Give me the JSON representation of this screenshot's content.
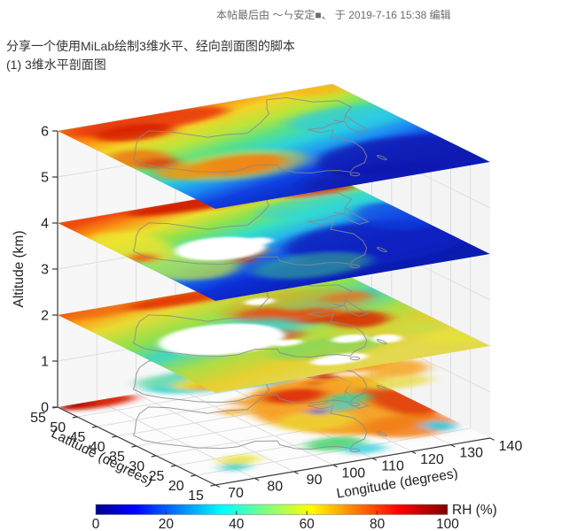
{
  "post": {
    "edit_note": "本帖最后由 ～ㄣ安定■、 于 2019-7-16 15:38 编辑",
    "body_line1": "分享一个使用MiLab绘制3维水平、经向剖面图的脚本",
    "body_line2": "(1) 3维水平剖面图"
  },
  "chart_data": {
    "type": "heatmap",
    "subtype": "3d-horizontal-slices",
    "variable": "relative humidity",
    "xlabel": "Longitude (degrees)",
    "ylabel": "Latitude (degrees)",
    "zlabel": "Altitude (km)",
    "x_ticks": [
      70,
      80,
      90,
      100,
      110,
      120,
      130,
      140
    ],
    "y_ticks": [
      55,
      50,
      45,
      40,
      35,
      30,
      25,
      20,
      15
    ],
    "z_ticks": [
      0,
      1,
      2,
      3,
      4,
      5,
      6
    ],
    "xlim": [
      70,
      140
    ],
    "ylim": [
      15,
      55
    ],
    "zlim": [
      0,
      6
    ],
    "slice_altitudes_km": [
      0,
      1,
      2,
      4,
      6
    ],
    "colorbar": {
      "label": "RH (%)",
      "ticks": [
        0,
        20,
        40,
        60,
        80,
        100
      ],
      "min": 0,
      "max": 100,
      "colormap": "jet",
      "stops": [
        [
          0,
          "#00008f"
        ],
        [
          0.11,
          "#0000ff"
        ],
        [
          0.36,
          "#00ffff"
        ],
        [
          0.61,
          "#ffff00"
        ],
        [
          0.86,
          "#ff0000"
        ],
        [
          1,
          "#800000"
        ]
      ]
    },
    "slices": [
      {
        "altitude_km": 0,
        "coverage": "partial",
        "blobs": [
          [
            0.13,
            0.02,
            0.14,
            0.055,
            "#d41b04",
            0.95
          ],
          [
            0.06,
            0.01,
            0.06,
            0.03,
            "#a50d00",
            0.9
          ],
          [
            0.78,
            0.45,
            0.3,
            0.33,
            "#f59c1a",
            0.92
          ],
          [
            0.7,
            0.28,
            0.11,
            0.08,
            "#dd2506",
            0.85
          ],
          [
            0.96,
            0.5,
            0.09,
            0.2,
            "#e03007",
            0.8
          ],
          [
            0.62,
            0.55,
            0.13,
            0.1,
            "#ecd431",
            0.85
          ],
          [
            0.85,
            0.75,
            0.16,
            0.12,
            "#f07d12",
            0.85
          ],
          [
            0.55,
            0.8,
            0.1,
            0.07,
            "#52d473",
            0.9
          ],
          [
            0.6,
            0.9,
            0.07,
            0.05,
            "#38cfe0",
            0.8
          ],
          [
            0.93,
            0.8,
            0.05,
            0.06,
            "#35cde4",
            0.9
          ],
          [
            0.68,
            0.47,
            0.03,
            0.03,
            "#1545e0",
            0.85
          ],
          [
            0.2,
            0.8,
            0.07,
            0.05,
            "#e8e23a",
            0.85
          ],
          [
            0.15,
            0.86,
            0.05,
            0.04,
            "#3fd0c8",
            0.85
          ],
          [
            0.45,
            0.33,
            0.045,
            0.035,
            "#f2a01c",
            0.8
          ],
          [
            0.52,
            0.25,
            0.035,
            0.03,
            "#ef8c14",
            0.75
          ]
        ],
        "holes": []
      },
      {
        "altitude_km": 1,
        "coverage": "partial",
        "blobs": [
          [
            0.34,
            0.42,
            0.26,
            0.13,
            "#3fd4cf",
            0.95
          ],
          [
            0.18,
            0.36,
            0.1,
            0.06,
            "#7adcb0",
            0.85
          ],
          [
            0.3,
            0.45,
            0.13,
            0.065,
            "#ecd92f",
            0.95
          ],
          [
            0.27,
            0.49,
            0.06,
            0.035,
            "#f2a21a",
            0.85
          ],
          [
            0.53,
            0.45,
            0.1,
            0.075,
            "#0c2bd0",
            0.95
          ],
          [
            0.55,
            0.44,
            0.05,
            0.04,
            "#0a1a9e",
            0.95
          ],
          [
            0.45,
            0.52,
            0.1,
            0.05,
            "#2ab4e0",
            0.8
          ],
          [
            0.64,
            0.55,
            0.028,
            0.075,
            "#cc1504",
            0.97
          ],
          [
            0.78,
            0.5,
            0.13,
            0.09,
            "#f7941a",
            0.9
          ],
          [
            0.88,
            0.62,
            0.1,
            0.09,
            "#f7a51d",
            0.85
          ],
          [
            0.72,
            0.68,
            0.09,
            0.055,
            "#f2b01f",
            0.8
          ],
          [
            0.8,
            0.76,
            0.12,
            0.06,
            "#e8d839",
            0.75
          ],
          [
            0.57,
            0.63,
            0.022,
            0.018,
            "#d02505",
            0.9
          ],
          [
            0.58,
            0.83,
            0.08,
            0.05,
            "#3ecfa0",
            0.85
          ],
          [
            0.52,
            0.9,
            0.06,
            0.04,
            "#41d0e0",
            0.75
          ],
          [
            0.68,
            0.45,
            0.05,
            0.04,
            "#efe42f",
            0.8
          ]
        ],
        "holes": []
      },
      {
        "altitude_km": 2,
        "coverage": "full",
        "grad": {
          "x1": 0.05,
          "y1": 0,
          "x2": 0.35,
          "y2": 1,
          "stops": [
            [
              0,
              "#ef5a0e"
            ],
            [
              0.09,
              "#f9a41b"
            ],
            [
              0.2,
              "#e7dc33"
            ],
            [
              0.38,
              "#8fe04e"
            ],
            [
              0.52,
              "#41d6c0"
            ],
            [
              0.68,
              "#addd45"
            ],
            [
              0.85,
              "#e7cf30"
            ],
            [
              1,
              "#e3d84e"
            ]
          ]
        },
        "blobs": [
          [
            0.45,
            0.05,
            0.26,
            0.06,
            "#e02b07",
            0.85
          ],
          [
            0.13,
            0.04,
            0.12,
            0.05,
            "#f06d10",
            0.8
          ],
          [
            0.75,
            0.06,
            0.2,
            0.05,
            "#ef7d12",
            0.8
          ],
          [
            0.56,
            0.33,
            0.09,
            0.07,
            "#d81f05",
            0.9
          ],
          [
            0.68,
            0.42,
            0.11,
            0.08,
            "#d81f05",
            0.88
          ],
          [
            0.79,
            0.53,
            0.1,
            0.09,
            "#dc2506",
            0.85
          ],
          [
            0.5,
            0.55,
            0.07,
            0.06,
            "#e8430b",
            0.8
          ],
          [
            0.88,
            0.3,
            0.09,
            0.05,
            "#e8560e",
            0.75
          ],
          [
            0.7,
            0.3,
            0.26,
            0.16,
            "#f2901b",
            0.45
          ],
          [
            0.44,
            0.45,
            0.18,
            0.12,
            "#35cfd4",
            0.5
          ],
          [
            0.55,
            0.75,
            0.2,
            0.1,
            "#5fd96a",
            0.55
          ],
          [
            0.96,
            0.85,
            0.11,
            0.08,
            "#e5e23a",
            0.8
          ],
          [
            0.9,
            0.7,
            0.1,
            0.07,
            "#bfe048",
            0.6
          ]
        ],
        "holes": [
          [
            0.31,
            0.5,
            0.21,
            0.16
          ],
          [
            0.52,
            0.88,
            0.1,
            0.05
          ],
          [
            0.66,
            0.7,
            0.06,
            0.04
          ],
          [
            0.76,
            0.76,
            0.05,
            0.045
          ],
          [
            0.62,
            0.2,
            0.05,
            0.035
          ],
          [
            0.47,
            0.64,
            0.05,
            0.03
          ]
        ]
      },
      {
        "altitude_km": 4,
        "coverage": "full",
        "grad": {
          "x1": 0.2,
          "y1": 0,
          "x2": 0.5,
          "y2": 1,
          "stops": [
            [
              0,
              "#ef4b0d"
            ],
            [
              0.1,
              "#fa9613"
            ],
            [
              0.2,
              "#e8e12f"
            ],
            [
              0.32,
              "#8ae24f"
            ],
            [
              0.44,
              "#38dfc2"
            ],
            [
              0.54,
              "#27b7ea"
            ],
            [
              0.65,
              "#1768ec"
            ],
            [
              0.78,
              "#0c2fd8"
            ],
            [
              1,
              "#0a1cb0"
            ]
          ]
        },
        "blobs": [
          [
            0.55,
            0.04,
            0.32,
            0.07,
            "#cf1804",
            0.9
          ],
          [
            0.88,
            0.1,
            0.14,
            0.07,
            "#e02c08",
            0.8
          ],
          [
            0.07,
            0.35,
            0.12,
            0.18,
            "#efe42f",
            0.8
          ],
          [
            0.12,
            0.62,
            0.16,
            0.16,
            "#c8e73a",
            0.7
          ],
          [
            0.04,
            0.47,
            0.05,
            0.05,
            "#f2570e",
            0.85
          ],
          [
            0.35,
            0.59,
            0.07,
            0.045,
            "#f6790f",
            0.85
          ],
          [
            0.3,
            0.66,
            0.04,
            0.03,
            "#e03108",
            0.8
          ],
          [
            0.8,
            0.26,
            0.22,
            0.1,
            "#2fd2e2",
            0.55
          ],
          [
            0.75,
            0.7,
            0.3,
            0.22,
            "#0a1dbe",
            0.85
          ],
          [
            0.95,
            0.48,
            0.12,
            0.16,
            "#1040e0",
            0.7
          ],
          [
            0.45,
            0.82,
            0.2,
            0.12,
            "#3ecb86",
            0.5
          ]
        ],
        "holes": [
          [
            0.3,
            0.51,
            0.15,
            0.12
          ],
          [
            0.44,
            0.5,
            0.05,
            0.04
          ]
        ]
      },
      {
        "altitude_km": 6,
        "coverage": "full",
        "grad": {
          "x1": 0.22,
          "y1": 0,
          "x2": 0.52,
          "y2": 1,
          "stops": [
            [
              0,
              "#f4640f"
            ],
            [
              0.1,
              "#fb9b12"
            ],
            [
              0.2,
              "#f3d429"
            ],
            [
              0.32,
              "#b8e53c"
            ],
            [
              0.44,
              "#55e08c"
            ],
            [
              0.55,
              "#2bd3dc"
            ],
            [
              0.68,
              "#1e8df2"
            ],
            [
              0.8,
              "#1040e0"
            ],
            [
              1,
              "#0a1ebc"
            ]
          ]
        },
        "blobs": [
          [
            0.3,
            0.06,
            0.28,
            0.09,
            "#e93a0c",
            0.9
          ],
          [
            0.2,
            0.14,
            0.14,
            0.08,
            "#d81e05",
            0.85
          ],
          [
            0.95,
            0.03,
            0.12,
            0.06,
            "#f6b519",
            0.8
          ],
          [
            0.07,
            0.4,
            0.1,
            0.1,
            "#f4710e",
            0.8
          ],
          [
            0.1,
            0.48,
            0.07,
            0.06,
            "#e03008",
            0.7
          ],
          [
            0.3,
            0.62,
            0.24,
            0.15,
            "#f2d32a",
            0.5
          ],
          [
            0.3,
            0.62,
            0.17,
            0.1,
            "#f8820e",
            0.9
          ],
          [
            0.12,
            0.6,
            0.1,
            0.08,
            "#f5920f",
            0.8
          ],
          [
            0.85,
            0.35,
            0.2,
            0.12,
            "#2cc8e8",
            0.6
          ],
          [
            0.8,
            0.8,
            0.3,
            0.2,
            "#0a18b0",
            0.8
          ],
          [
            0.6,
            0.95,
            0.25,
            0.12,
            "#0a18b0",
            0.7
          ]
        ],
        "holes": []
      }
    ],
    "map_outline": {
      "china": [
        [
          73.6,
          39.4
        ],
        [
          75,
          40.4
        ],
        [
          79.9,
          44.9
        ],
        [
          83,
          47.2
        ],
        [
          87.3,
          49.1
        ],
        [
          90.7,
          47.6
        ],
        [
          96,
          42.8
        ],
        [
          100.9,
          42.6
        ],
        [
          104.9,
          41.7
        ],
        [
          111.9,
          45.1
        ],
        [
          116.7,
          47.9
        ],
        [
          117.8,
          49.5
        ],
        [
          121.5,
          53.3
        ],
        [
          126,
          52.8
        ],
        [
          129.5,
          49.4
        ],
        [
          134.7,
          48.3
        ],
        [
          134.8,
          45
        ],
        [
          131,
          42.6
        ],
        [
          127.9,
          40
        ],
        [
          124.3,
          39.8
        ],
        [
          121.6,
          38.9
        ],
        [
          117.8,
          39.3
        ],
        [
          119.2,
          37.2
        ],
        [
          122.6,
          37.4
        ],
        [
          119.3,
          34.8
        ],
        [
          121.9,
          31.7
        ],
        [
          121,
          28.4
        ],
        [
          118.9,
          25.3
        ],
        [
          116,
          22.9
        ],
        [
          112.1,
          21.7
        ],
        [
          109.7,
          20.3
        ],
        [
          108.1,
          21.6
        ],
        [
          105.8,
          22.3
        ],
        [
          101.8,
          22.5
        ],
        [
          99.1,
          23.6
        ],
        [
          97.6,
          26.1
        ],
        [
          98.6,
          27.8
        ],
        [
          94.2,
          29.1
        ],
        [
          89,
          28.1
        ],
        [
          85.1,
          28.6
        ],
        [
          80.9,
          30.4
        ],
        [
          78.4,
          32.3
        ],
        [
          75.6,
          34.3
        ],
        [
          73.6,
          36.6
        ],
        [
          73.6,
          39.4
        ]
      ],
      "korea": [
        [
          126.3,
          41.1
        ],
        [
          127.9,
          39.7
        ],
        [
          126.3,
          37.2
        ],
        [
          126.6,
          34.9
        ],
        [
          129.3,
          35.3
        ],
        [
          129.6,
          38.7
        ],
        [
          130.4,
          42.4
        ]
      ],
      "islands": [
        [
          121.2,
          23.7,
          0.5,
          1.1
        ],
        [
          109.7,
          19.1,
          1.0,
          0.7
        ]
      ]
    }
  }
}
